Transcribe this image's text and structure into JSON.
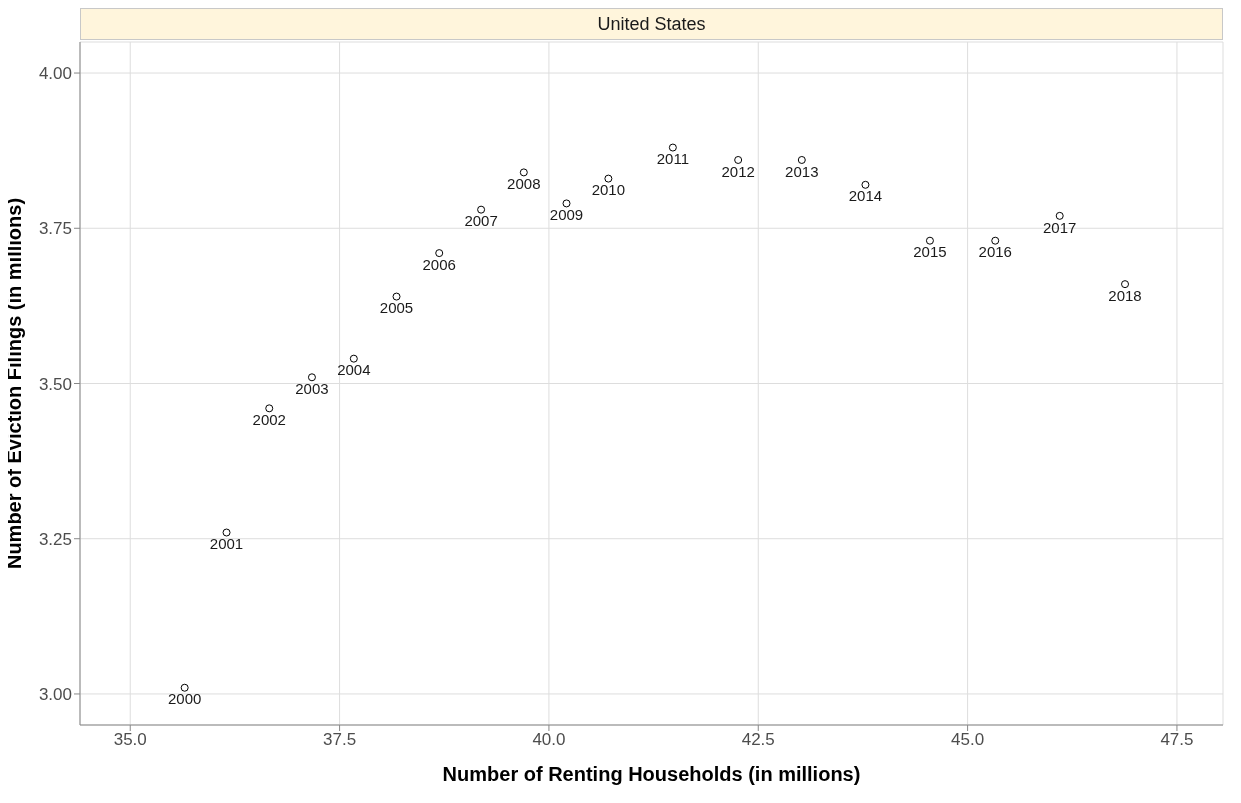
{
  "chart_data": {
    "type": "scatter",
    "title": "United States",
    "xlabel": "Number of Renting Households (in millions)",
    "ylabel": "Number of Eviction Filings (in millions)",
    "x": [
      35.65,
      36.15,
      36.66,
      37.17,
      37.67,
      38.18,
      38.69,
      39.19,
      39.7,
      40.21,
      40.71,
      41.48,
      42.26,
      43.02,
      43.78,
      44.55,
      45.33,
      46.1,
      46.88
    ],
    "series": [
      {
        "color": "#000000",
        "values": [
          3.01,
          3.26,
          3.46,
          3.51,
          3.54,
          3.64,
          3.71,
          3.78,
          3.84,
          3.79,
          3.83,
          3.88,
          3.86,
          3.86,
          3.82,
          3.73,
          3.73,
          3.77,
          3.66
        ]
      }
    ],
    "annotations": [
      {
        "text": "2000",
        "x": 35.65,
        "y": 3.01
      },
      {
        "text": "2001",
        "x": 36.15,
        "y": 3.26
      },
      {
        "text": "2002",
        "x": 36.66,
        "y": 3.46
      },
      {
        "text": "2003",
        "x": 37.17,
        "y": 3.51
      },
      {
        "text": "2004",
        "x": 37.67,
        "y": 3.54
      },
      {
        "text": "2005",
        "x": 38.18,
        "y": 3.64
      },
      {
        "text": "2006",
        "x": 38.69,
        "y": 3.71
      },
      {
        "text": "2007",
        "x": 39.19,
        "y": 3.78
      },
      {
        "text": "2008",
        "x": 39.7,
        "y": 3.84
      },
      {
        "text": "2009",
        "x": 40.21,
        "y": 3.79
      },
      {
        "text": "2010",
        "x": 40.71,
        "y": 3.83
      },
      {
        "text": "2011",
        "x": 41.48,
        "y": 3.88
      },
      {
        "text": "2012",
        "x": 42.26,
        "y": 3.86
      },
      {
        "text": "2013",
        "x": 43.02,
        "y": 3.86
      },
      {
        "text": "2014",
        "x": 43.78,
        "y": 3.82
      },
      {
        "text": "2015",
        "x": 44.55,
        "y": 3.73
      },
      {
        "text": "2016",
        "x": 45.33,
        "y": 3.73
      },
      {
        "text": "2017",
        "x": 46.1,
        "y": 3.77
      },
      {
        "text": "2018",
        "x": 46.88,
        "y": 3.66
      }
    ],
    "xlim": [
      34.4,
      48.05
    ],
    "ylim": [
      2.95,
      4.05
    ],
    "xticks": [
      {
        "value": 35,
        "label": "35.0"
      },
      {
        "value": 37.5,
        "label": "37.5"
      },
      {
        "value": 40,
        "label": "40.0"
      },
      {
        "value": 42.5,
        "label": "42.5"
      },
      {
        "value": 45,
        "label": "45.0"
      },
      {
        "value": 47.5,
        "label": "47.5"
      }
    ],
    "yticks": [
      {
        "value": 3,
        "label": "3.00"
      },
      {
        "value": 3.25,
        "label": "3.25"
      },
      {
        "value": 3.5,
        "label": "3.50"
      },
      {
        "value": 3.75,
        "label": "3.75"
      },
      {
        "value": 4,
        "label": "4.00"
      }
    ],
    "grid": true,
    "marker": "circle",
    "legend": false
  }
}
